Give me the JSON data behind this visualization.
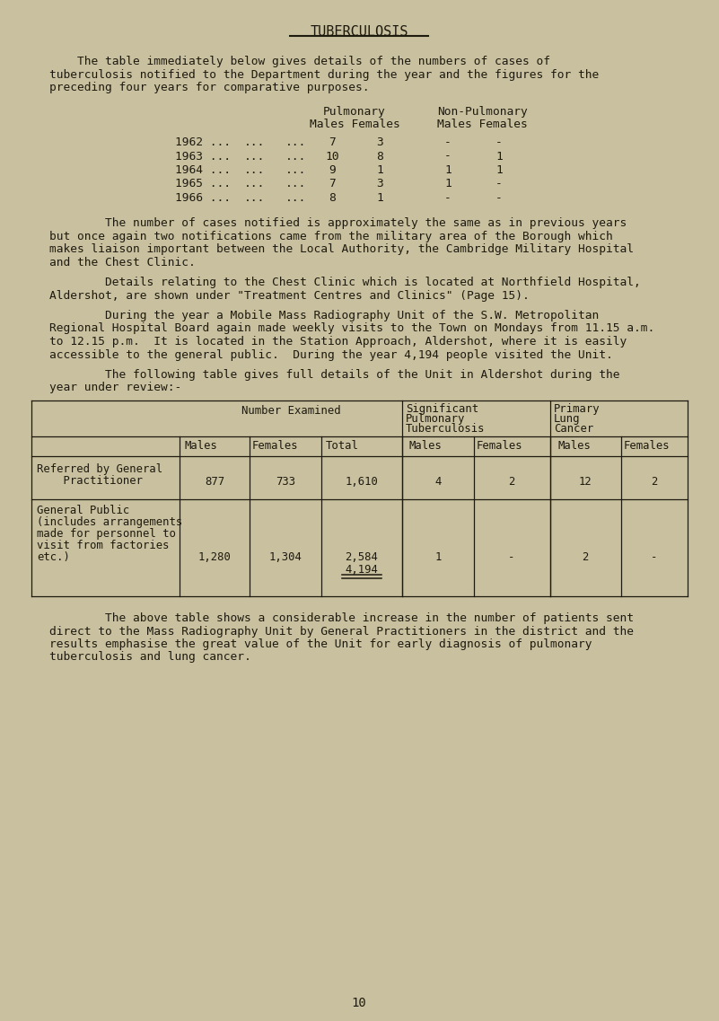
{
  "bg_color": "#c9c0a0",
  "text_color": "#1e1a0e",
  "title": "TUBERCULOSIS",
  "page_number": "10",
  "intro_paragraph_lines": [
    "    The table immediately below gives details of the numbers of cases of",
    "tuberculosis notified to the Department during the year and the figures for the",
    "preceding four years for comparative purposes."
  ],
  "table1_rows": [
    [
      "1962 ...",
      "...",
      "...",
      "7",
      "3",
      "-",
      "-"
    ],
    [
      "1963 ...",
      "...",
      "...",
      "10",
      "8",
      "-",
      "1"
    ],
    [
      "1964 ...",
      "...",
      "...",
      "9",
      "1",
      "1",
      "1"
    ],
    [
      "1965 ...",
      "...",
      "...",
      "7",
      "3",
      "1",
      "-"
    ],
    [
      "1966 ...",
      "...",
      "...",
      "8",
      "1",
      "-",
      "-"
    ]
  ],
  "paragraph1_lines": [
    "        The number of cases notified is approximately the same as in previous years",
    "but once again two notifications came from the military area of the Borough which",
    "makes liaison important between the Local Authority, the Cambridge Military Hospital",
    "and the Chest Clinic."
  ],
  "paragraph2_lines": [
    "        Details relating to the Chest Clinic which is located at Northfield Hospital,",
    "Aldershot, are shown under \"Treatment Centres and Clinics\" (Page 15)."
  ],
  "paragraph3_lines": [
    "        During the year a Mobile Mass Radiography Unit of the S.W. Metropolitan",
    "Regional Hospital Board again made weekly visits to the Town on Mondays from 11.15 a.m.",
    "to 12.15 p.m.  It is located in the Station Approach, Aldershot, where it is easily",
    "accessible to the general public.  During the year 4,194 people visited the Unit."
  ],
  "paragraph4_lines": [
    "        The following table gives full details of the Unit in Aldershot during the",
    "year under review:-"
  ],
  "paragraph5_lines": [
    "        The above table shows a considerable increase in the number of patients sent",
    "direct to the Mass Radiography Unit by General Practitioners in the district and the",
    "results emphasise the great value of the Unit for early diagnosis of pulmonary",
    "tuberculosis and lung cancer."
  ],
  "table2_row1_label_lines": [
    "Referred by General",
    "    Practitioner"
  ],
  "table2_row1_data": [
    "877",
    "733",
    "1,610",
    "4",
    "2",
    "12",
    "2"
  ],
  "table2_row2_label_lines": [
    "General Public",
    "(includes arrangements",
    "made for personnel to",
    "visit from factories",
    "etc.)"
  ],
  "table2_row2_data": [
    "1,280",
    "1,304",
    "2,584",
    "1",
    "-",
    "2",
    "-"
  ],
  "table2_total": "4,194"
}
